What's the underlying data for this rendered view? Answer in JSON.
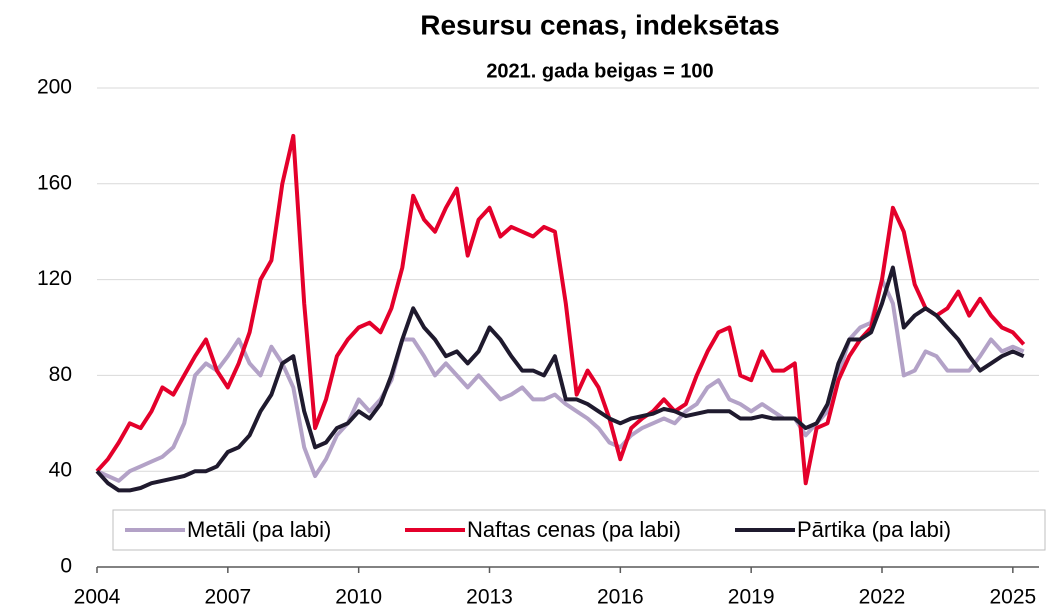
{
  "chart_data": {
    "type": "line",
    "title": "Resursu cenas, indeksētas",
    "subtitle": "2021. gada beigas = 100",
    "x": [
      2004,
      2004.25,
      2004.5,
      2004.75,
      2005,
      2005.25,
      2005.5,
      2005.75,
      2006,
      2006.25,
      2006.5,
      2006.75,
      2007,
      2007.25,
      2007.5,
      2007.75,
      2008,
      2008.25,
      2008.5,
      2008.75,
      2009,
      2009.25,
      2009.5,
      2009.75,
      2010,
      2010.25,
      2010.5,
      2010.75,
      2011,
      2011.25,
      2011.5,
      2011.75,
      2012,
      2012.25,
      2012.5,
      2012.75,
      2013,
      2013.25,
      2013.5,
      2013.75,
      2014,
      2014.25,
      2014.5,
      2014.75,
      2015,
      2015.25,
      2015.5,
      2015.75,
      2016,
      2016.25,
      2016.5,
      2016.75,
      2017,
      2017.25,
      2017.5,
      2017.75,
      2018,
      2018.25,
      2018.5,
      2018.75,
      2019,
      2019.25,
      2019.5,
      2019.75,
      2020,
      2020.25,
      2020.5,
      2020.75,
      2021,
      2021.25,
      2021.5,
      2021.75,
      2022,
      2022.25,
      2022.5,
      2022.75,
      2023,
      2023.25,
      2023.5,
      2023.75,
      2024,
      2024.25,
      2024.5,
      2024.75,
      2025,
      2025.25
    ],
    "series": [
      {
        "name": "Metāli (pa labi)",
        "color": "#b3a2c7",
        "values": [
          40,
          38,
          36,
          40,
          42,
          44,
          46,
          50,
          60,
          80,
          85,
          82,
          88,
          95,
          85,
          80,
          92,
          85,
          75,
          50,
          38,
          45,
          55,
          60,
          70,
          65,
          70,
          78,
          95,
          95,
          88,
          80,
          85,
          80,
          75,
          80,
          75,
          70,
          72,
          75,
          70,
          70,
          72,
          68,
          65,
          62,
          58,
          52,
          50,
          55,
          58,
          60,
          62,
          60,
          65,
          68,
          75,
          78,
          70,
          68,
          65,
          68,
          65,
          62,
          62,
          55,
          60,
          65,
          80,
          95,
          100,
          102,
          120,
          110,
          80,
          82,
          90,
          88,
          82,
          82,
          82,
          88,
          95,
          90,
          92,
          90
        ]
      },
      {
        "name": "Naftas cenas (pa labi)",
        "color": "#e4002b",
        "values": [
          40,
          45,
          52,
          60,
          58,
          65,
          75,
          72,
          80,
          88,
          95,
          82,
          75,
          85,
          98,
          120,
          128,
          160,
          180,
          110,
          58,
          70,
          88,
          95,
          100,
          102,
          98,
          108,
          125,
          155,
          145,
          140,
          150,
          158,
          130,
          145,
          150,
          138,
          142,
          140,
          138,
          142,
          140,
          110,
          72,
          82,
          75,
          62,
          45,
          58,
          62,
          65,
          70,
          65,
          68,
          80,
          90,
          98,
          100,
          80,
          78,
          90,
          82,
          82,
          85,
          35,
          58,
          60,
          78,
          88,
          95,
          100,
          120,
          150,
          140,
          118,
          108,
          105,
          108,
          115,
          105,
          112,
          105,
          100,
          98,
          93
        ]
      },
      {
        "name": "Pārtika (pa labi)",
        "color": "#1f1a2e",
        "values": [
          40,
          35,
          32,
          32,
          33,
          35,
          36,
          37,
          38,
          40,
          40,
          42,
          48,
          50,
          55,
          65,
          72,
          85,
          88,
          65,
          50,
          52,
          58,
          60,
          65,
          62,
          68,
          80,
          95,
          108,
          100,
          95,
          88,
          90,
          85,
          90,
          100,
          95,
          88,
          82,
          82,
          80,
          88,
          70,
          70,
          68,
          65,
          62,
          60,
          62,
          63,
          64,
          66,
          65,
          63,
          64,
          65,
          65,
          65,
          62,
          62,
          63,
          62,
          62,
          62,
          58,
          60,
          68,
          85,
          95,
          95,
          98,
          110,
          125,
          100,
          105,
          108,
          105,
          100,
          95,
          88,
          82,
          85,
          88,
          90,
          88
        ]
      }
    ],
    "xlim": [
      2004,
      2025.6
    ],
    "xticks": [
      2004,
      2007,
      2010,
      2013,
      2016,
      2019,
      2022,
      2025
    ],
    "ylim": [
      0,
      200
    ],
    "yticks": [
      0,
      40,
      80,
      120,
      160,
      200
    ],
    "grid": true,
    "legend": "bottom"
  }
}
